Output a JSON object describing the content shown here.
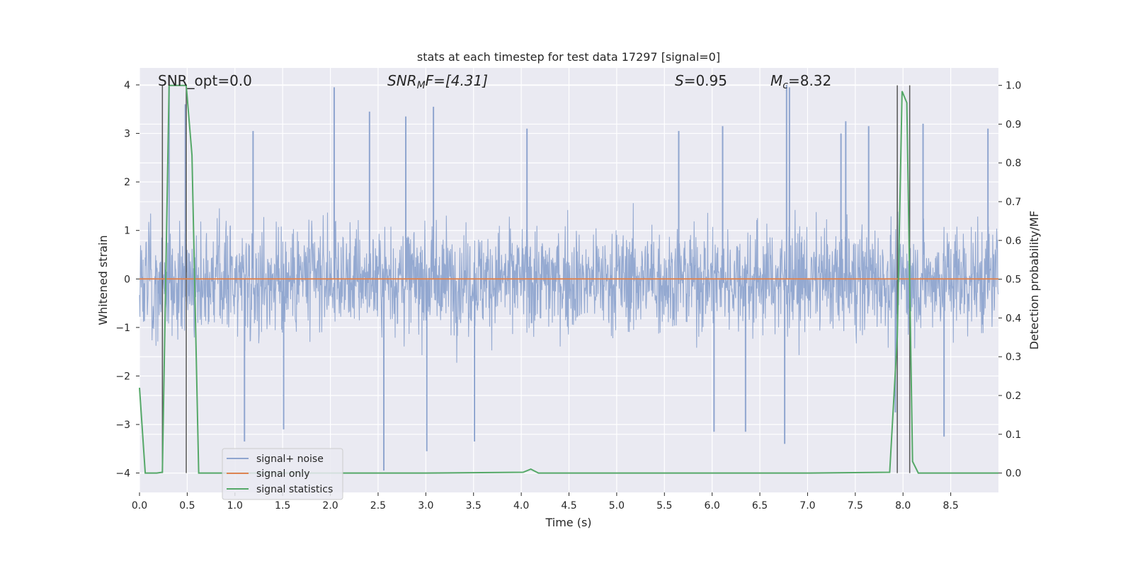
{
  "chart_data": {
    "type": "line",
    "title": "stats at each timestep for test data 17297 [signal=0]",
    "xlabel": "Time (s)",
    "ylabel": "Whitened strain",
    "y2label": "Detection probability/MF",
    "xlim": [
      0.0,
      9.0
    ],
    "ylim": [
      -4.4,
      4.35
    ],
    "y2lim": [
      -0.05,
      1.045
    ],
    "xticks": [
      "0.0",
      "0.5",
      "1.0",
      "1.5",
      "2.0",
      "2.5",
      "3.0",
      "3.5",
      "4.0",
      "4.5",
      "5.0",
      "5.5",
      "6.0",
      "6.5",
      "7.0",
      "7.5",
      "8.0",
      "8.5"
    ],
    "yticks": [
      "4",
      "3",
      "2",
      "1",
      "0",
      "−1",
      "−2",
      "−3",
      "−4"
    ],
    "y2ticks": [
      "0.0",
      "0.1",
      "0.2",
      "0.3",
      "0.4",
      "0.5",
      "0.6",
      "0.7",
      "0.8",
      "0.9",
      "1.0"
    ],
    "grid": true,
    "legend_position": "lower-left",
    "annotations": {
      "snr_opt": "SNR_opt=0.0",
      "snr_mf_prefix": "SNR",
      "snr_mf_sub": "M",
      "snr_mf_suffix": "F=[4.31]",
      "s_prefix": "S",
      "s_suffix": "=0.95",
      "mc_prefix": "M",
      "mc_sub": "c",
      "mc_suffix": "=8.32"
    },
    "vertical_markers_x": [
      0.24,
      0.49,
      7.94,
      8.07
    ],
    "series": [
      {
        "name": "signal+ noise",
        "color": "#8fa5cf",
        "axis": "left",
        "style": "noise",
        "envelope_sigma": 0.85,
        "x": [
          0.31,
          0.48,
          1.19,
          2.04,
          2.41,
          2.79,
          3.08,
          4.06,
          5.65,
          6.11,
          6.78,
          6.81,
          7.35,
          7.4,
          7.64,
          8.21,
          8.89,
          1.1,
          1.51,
          2.56,
          3.01,
          3.51,
          6.02,
          6.35,
          6.76,
          7.92,
          8.43
        ],
        "y": [
          3.95,
          3.6,
          3.05,
          3.95,
          3.45,
          3.35,
          3.55,
          3.1,
          3.05,
          3.15,
          4.0,
          3.95,
          3.0,
          3.25,
          3.15,
          3.2,
          3.1,
          -3.35,
          -3.1,
          -3.95,
          -3.55,
          -3.35,
          -3.15,
          -3.15,
          -3.4,
          -2.75,
          -3.25
        ]
      },
      {
        "name": "signal only",
        "color": "#dd8452",
        "axis": "left",
        "x": [
          0.0,
          9.0
        ],
        "y": [
          0.0,
          0.0
        ]
      },
      {
        "name": "signal statistics",
        "color": "#55a868",
        "axis": "right",
        "x": [
          0.0,
          0.06,
          0.18,
          0.24,
          0.31,
          0.49,
          0.55,
          0.62,
          0.7,
          1.0,
          2.0,
          3.0,
          4.02,
          4.1,
          4.18,
          5.0,
          6.0,
          7.0,
          7.86,
          7.94,
          7.99,
          8.04,
          8.1,
          8.16,
          8.22,
          8.5,
          9.0
        ],
        "y": [
          0.22,
          0.0,
          0.0,
          0.002,
          1.0,
          1.0,
          0.82,
          0.0,
          0.0,
          0.0,
          0.0,
          0.0,
          0.002,
          0.01,
          0.0,
          0.0,
          0.0,
          0.0,
          0.002,
          0.35,
          0.985,
          0.955,
          0.03,
          0.0,
          0.0,
          0.0,
          0.0
        ]
      }
    ]
  }
}
